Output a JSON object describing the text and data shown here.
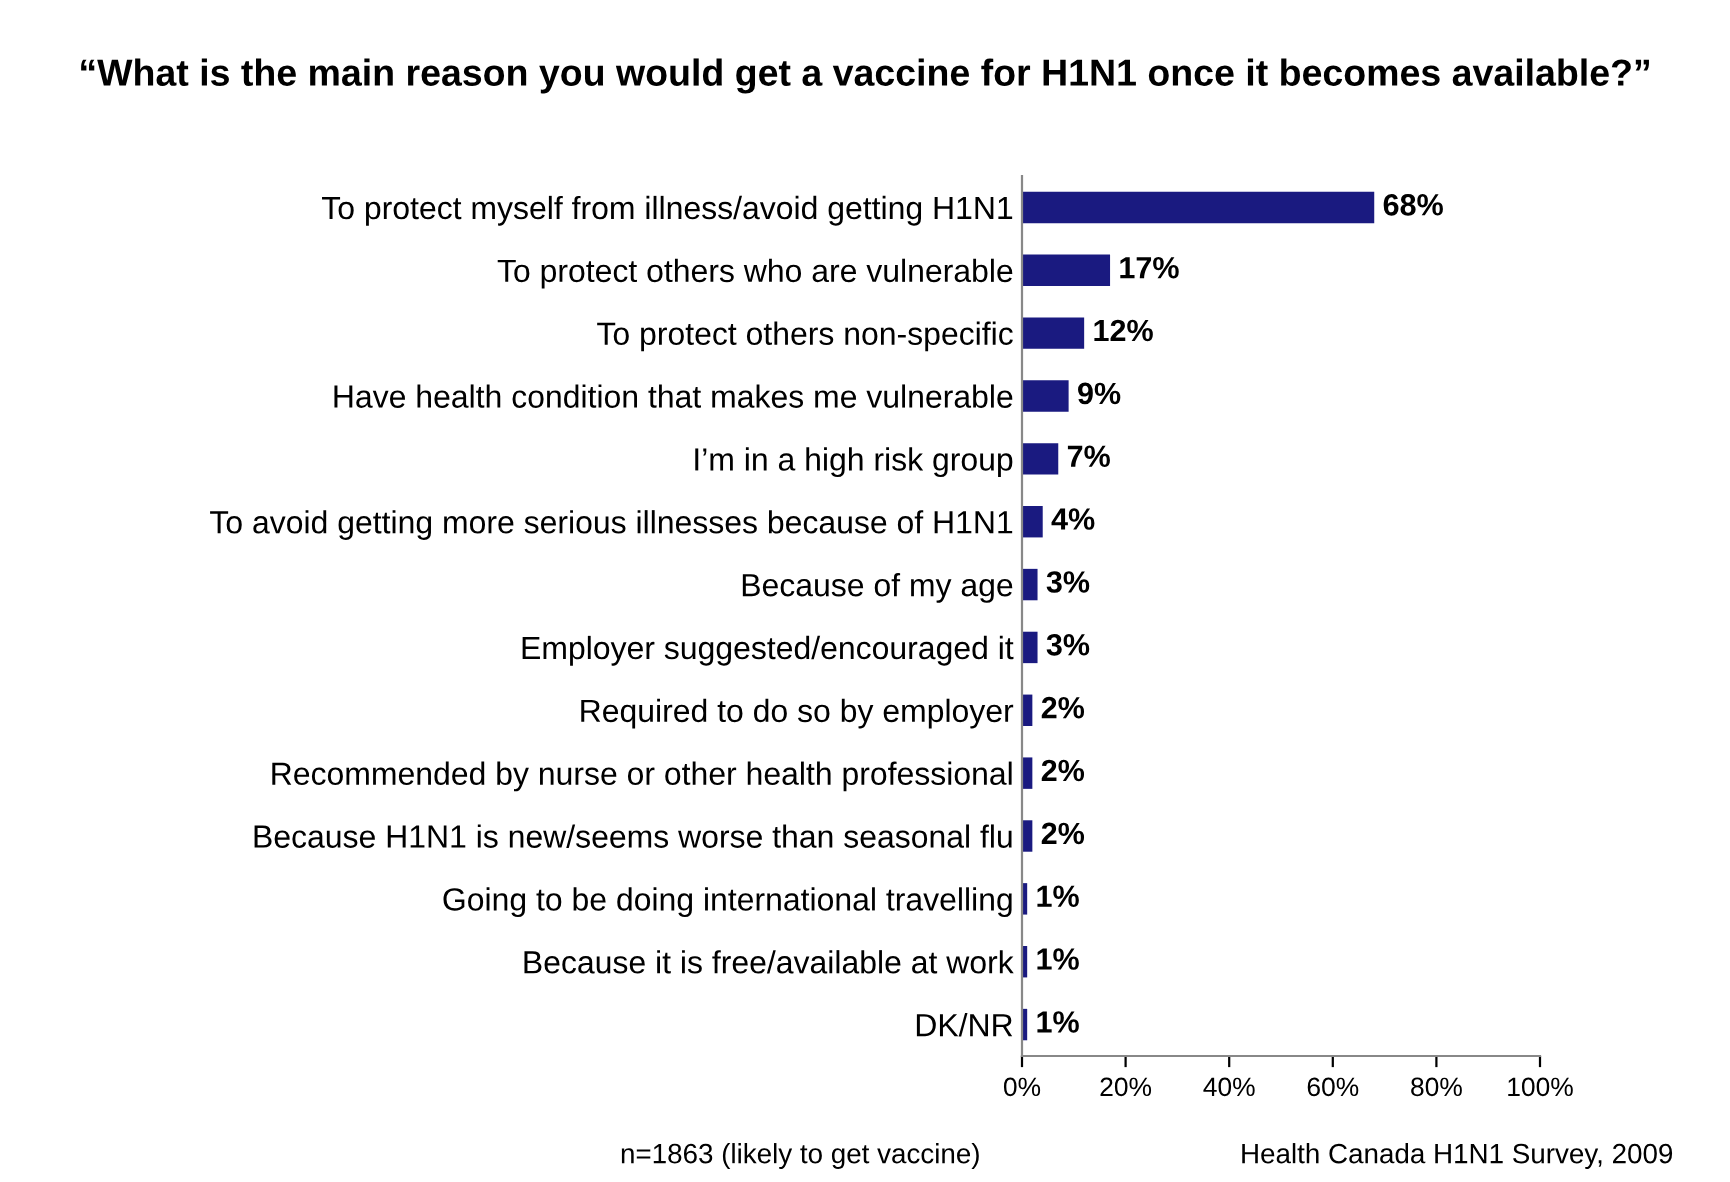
{
  "chart_data": {
    "type": "bar",
    "orientation": "horizontal",
    "title": "“What is the main reason you would get a vaccine for H1N1 once it becomes available?”",
    "categories": [
      "To protect myself from illness/avoid getting H1N1",
      "To protect others who are vulnerable",
      "To protect others non-specific",
      "Have health condition that makes me vulnerable",
      "I’m in a high risk group",
      "To avoid getting more serious illnesses because of H1N1",
      "Because of my age",
      "Employer suggested/encouraged it",
      "Required to do so by employer",
      "Recommended by nurse or other health professional",
      "Because H1N1 is new/seems worse than seasonal flu",
      "Going to be doing international travelling",
      "Because it is free/available at work",
      "DK/NR"
    ],
    "values": [
      68,
      17,
      12,
      9,
      7,
      4,
      3,
      3,
      2,
      2,
      2,
      1,
      1,
      1
    ],
    "value_labels": [
      "68%",
      "17%",
      "12%",
      "9%",
      "7%",
      "4%",
      "3%",
      "3%",
      "2%",
      "2%",
      "2%",
      "1%",
      "1%",
      "1%"
    ],
    "color": "#1a1a80",
    "xlim": [
      0,
      100
    ],
    "xticks": [
      {
        "value": 0,
        "label": "0%"
      },
      {
        "value": 20,
        "label": "20%"
      },
      {
        "value": 40,
        "label": "40%"
      },
      {
        "value": 60,
        "label": "60%"
      },
      {
        "value": 80,
        "label": "80%"
      },
      {
        "value": 100,
        "label": "100%"
      }
    ],
    "grid": false,
    "annotations": [
      "n=1863 (likely to get vaccine)",
      "Health Canada H1N1 Survey, 2009"
    ]
  }
}
